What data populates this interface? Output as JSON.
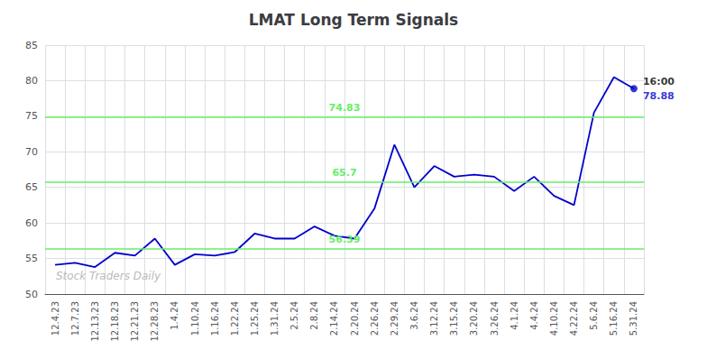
{
  "chart_data": {
    "type": "line",
    "title": "LMAT Long Term Signals",
    "categories": [
      "12.4.23",
      "12.7.23",
      "12.13.23",
      "12.18.23",
      "12.21.23",
      "12.28.23",
      "1.4.24",
      "1.10.24",
      "1.16.24",
      "1.22.24",
      "1.25.24",
      "1.31.24",
      "2.5.24",
      "2.8.24",
      "2.14.24",
      "2.20.24",
      "2.26.24",
      "2.29.24",
      "3.6.24",
      "3.12.24",
      "3.15.24",
      "3.20.24",
      "3.26.24",
      "4.1.24",
      "4.4.24",
      "4.10.24",
      "4.22.24",
      "5.6.24",
      "5.16.24",
      "5.31.24"
    ],
    "values": [
      54.1,
      54.4,
      53.8,
      55.8,
      55.4,
      57.8,
      54.1,
      55.6,
      55.4,
      55.9,
      58.5,
      57.8,
      57.8,
      59.5,
      58.2,
      57.8,
      62.0,
      71.0,
      65.0,
      68.0,
      66.5,
      66.8,
      66.5,
      64.5,
      66.5,
      63.8,
      62.5,
      75.5,
      80.5,
      78.88
    ],
    "color": "#0000cc",
    "ylim": [
      50,
      85
    ],
    "yticks": [
      50,
      55,
      60,
      65,
      70,
      75,
      80,
      85
    ],
    "grid": true,
    "hlines": [
      {
        "value": 56.39,
        "label": "56.39",
        "color": "#66ee66"
      },
      {
        "value": 65.7,
        "label": "65.7",
        "color": "#66ee66"
      },
      {
        "value": 74.83,
        "label": "74.83",
        "color": "#66ee66"
      }
    ],
    "annotations": [
      {
        "text": "16:00",
        "category": "5.31.24",
        "color": "#000000"
      },
      {
        "text": "78.88",
        "category": "5.31.24",
        "value": 78.88,
        "color": "#0000cc"
      },
      {
        "text": "Stock Traders Daily",
        "color": "#bbbbbb"
      }
    ]
  }
}
